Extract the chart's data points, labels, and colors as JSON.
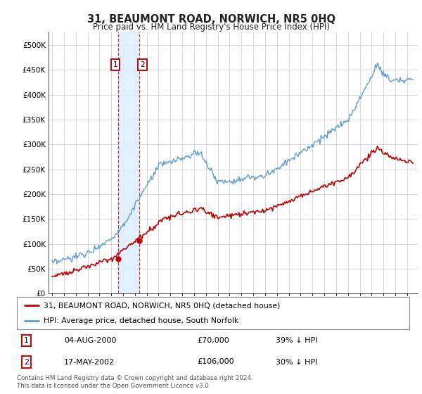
{
  "title": "31, BEAUMONT ROAD, NORWICH, NR5 0HQ",
  "subtitle": "Price paid vs. HM Land Registry's House Price Index (HPI)",
  "legend_line1": "31, BEAUMONT ROAD, NORWICH, NR5 0HQ (detached house)",
  "legend_line2": "HPI: Average price, detached house, South Norfolk",
  "annotation1_date": "04-AUG-2000",
  "annotation1_price": "£70,000",
  "annotation1_hpi": "39% ↓ HPI",
  "annotation2_date": "17-MAY-2002",
  "annotation2_price": "£106,000",
  "annotation2_hpi": "30% ↓ HPI",
  "footer": "Contains HM Land Registry data © Crown copyright and database right 2024.\nThis data is licensed under the Open Government Licence v3.0.",
  "hpi_color": "#5b9bd5",
  "price_color": "#c00000",
  "shade_color": "#ddeeff",
  "annotation_box_color": "#cc0000",
  "ylim_min": 0,
  "ylim_max": 500000,
  "background_color": "#ffffff",
  "grid_color": "#cccccc",
  "sale1_year": 2000.583,
  "sale1_price": 70000,
  "sale2_year": 2002.375,
  "sale2_price": 106000
}
